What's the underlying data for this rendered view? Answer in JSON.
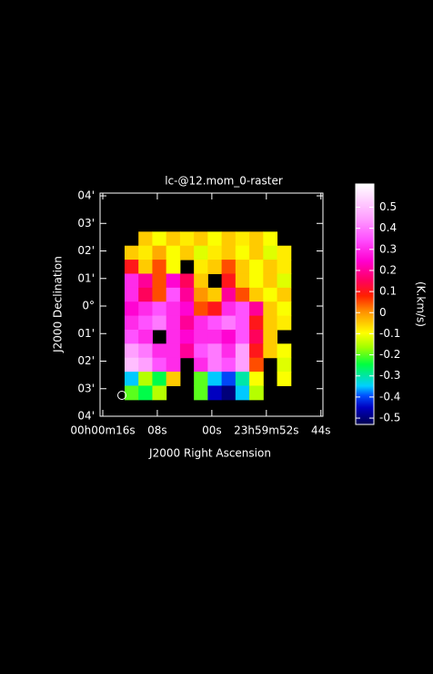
{
  "chart_data": {
    "type": "heatmap",
    "title": "lc-@12.mom_0-raster",
    "x_label": "J2000 Right Ascension",
    "y_label": "J2000 Declination",
    "colorbar_label": "(K.km/s)",
    "xlim": [
      16.4,
      -16.3
    ],
    "xticks": [
      {
        "value": 16,
        "label": "00h00m16s"
      },
      {
        "value": 8,
        "label": "08s"
      },
      {
        "value": 0,
        "label": "00s"
      },
      {
        "value": -8,
        "label": "23h59m52s"
      },
      {
        "value": -16,
        "label": "44s"
      }
    ],
    "ylim": [
      -4.0,
      4.1
    ],
    "yticks": [
      {
        "value": 4,
        "label": "04'"
      },
      {
        "value": 3,
        "label": "03'"
      },
      {
        "value": 2,
        "label": "02'"
      },
      {
        "value": 1,
        "label": "01'"
      },
      {
        "value": 0,
        "label": "0°"
      },
      {
        "value": -1,
        "label": "01'"
      },
      {
        "value": -2,
        "label": "02'"
      },
      {
        "value": -3,
        "label": "03'"
      },
      {
        "value": -4,
        "label": "04'"
      }
    ],
    "extent": [
      12.8,
      -11.6,
      2.7,
      -3.4
    ],
    "zlim": [
      -0.53,
      0.61
    ],
    "zticks": [
      0.5,
      0.4,
      0.3,
      0.2,
      0.1,
      0,
      -0.1,
      -0.2,
      -0.3,
      -0.4,
      -0.5
    ],
    "z": [
      [
        null,
        -0.05,
        -0.1,
        -0.05,
        -0.08,
        -0.05,
        -0.1,
        -0.05,
        -0.08,
        -0.05,
        -0.1,
        null
      ],
      [
        -0.05,
        -0.08,
        -0.02,
        -0.1,
        -0.05,
        -0.12,
        -0.08,
        -0.05,
        -0.1,
        -0.05,
        -0.12,
        -0.08
      ],
      [
        0.1,
        -0.05,
        0.05,
        -0.1,
        null,
        -0.08,
        -0.05,
        0.05,
        -0.05,
        -0.1,
        -0.05,
        -0.08
      ],
      [
        0.3,
        0.2,
        0.05,
        0.25,
        0.15,
        -0.05,
        null,
        0.1,
        -0.05,
        -0.1,
        -0.05,
        -0.12
      ],
      [
        0.3,
        0.15,
        0.05,
        0.35,
        0.2,
        0.0,
        -0.05,
        0.2,
        0.05,
        -0.05,
        -0.1,
        -0.05
      ],
      [
        0.25,
        0.3,
        0.35,
        0.3,
        0.25,
        0.05,
        0.1,
        0.3,
        0.35,
        0.2,
        -0.05,
        -0.1
      ],
      [
        0.3,
        0.35,
        0.4,
        0.3,
        0.2,
        0.3,
        0.35,
        0.4,
        0.35,
        0.1,
        -0.05,
        -0.08
      ],
      [
        0.35,
        0.3,
        null,
        0.3,
        0.25,
        0.3,
        0.3,
        0.25,
        0.35,
        0.15,
        -0.05,
        null
      ],
      [
        0.45,
        0.4,
        0.3,
        0.3,
        0.2,
        0.35,
        0.4,
        0.3,
        0.45,
        0.1,
        -0.05,
        -0.1
      ],
      [
        0.5,
        0.45,
        0.35,
        0.3,
        null,
        0.3,
        0.4,
        0.35,
        0.45,
        0.05,
        null,
        -0.12
      ],
      [
        -0.35,
        -0.15,
        -0.25,
        -0.05,
        null,
        -0.2,
        -0.35,
        -0.4,
        -0.3,
        -0.1,
        null,
        -0.1
      ],
      [
        -0.2,
        -0.25,
        -0.15,
        null,
        null,
        -0.2,
        -0.45,
        -0.5,
        -0.35,
        -0.15,
        null,
        null
      ]
    ]
  }
}
